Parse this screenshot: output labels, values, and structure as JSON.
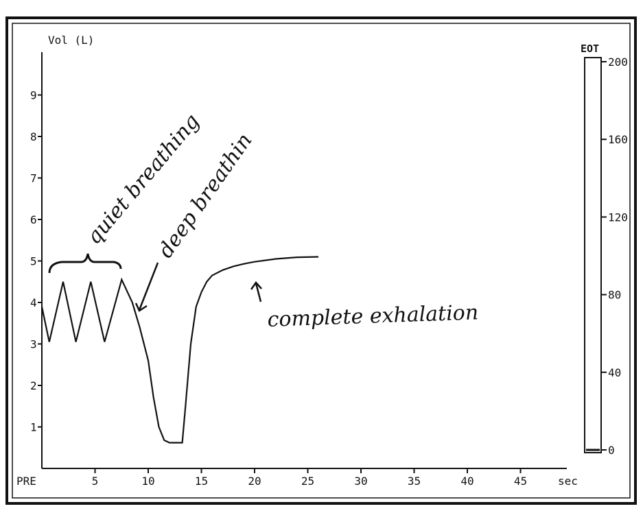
{
  "chart_data": {
    "type": "line",
    "ylabel": "Vol (L)",
    "xlabel": "sec",
    "x_first_tick_label": "PRE",
    "x_ticks": [
      5,
      10,
      15,
      20,
      25,
      30,
      35,
      40,
      45
    ],
    "y_ticks": [
      1,
      2,
      3,
      4,
      5,
      6,
      7,
      8,
      9
    ],
    "xlim": [
      0,
      50
    ],
    "ylim": [
      0,
      10
    ],
    "series": [
      {
        "x": [
          0,
          0.7,
          2.0,
          3.2,
          4.6,
          5.9,
          7.5,
          8.5,
          9.2,
          10.0,
          10.5,
          11.0,
          11.5,
          12.0,
          12.5,
          13.2,
          13.5,
          14.0,
          14.5,
          15.0,
          15.5,
          16.0,
          17.0,
          18.0,
          19.0,
          20.0,
          22.0,
          24.0,
          26.0
        ],
        "y": [
          3.9,
          3.05,
          4.5,
          3.05,
          4.5,
          3.05,
          4.55,
          4.0,
          3.4,
          2.6,
          1.7,
          1.0,
          0.68,
          0.62,
          0.62,
          0.62,
          1.5,
          3.0,
          3.9,
          4.25,
          4.5,
          4.65,
          4.78,
          4.87,
          4.93,
          4.98,
          5.05,
          5.09,
          5.1
        ]
      }
    ],
    "gauge": {
      "label": "EOT",
      "ticks": [
        "200",
        "160",
        "120",
        "80",
        "40",
        "0"
      ],
      "value": 0
    },
    "annotations": [
      "quiet breathing",
      "deep breathin",
      "complete exhalation"
    ]
  }
}
